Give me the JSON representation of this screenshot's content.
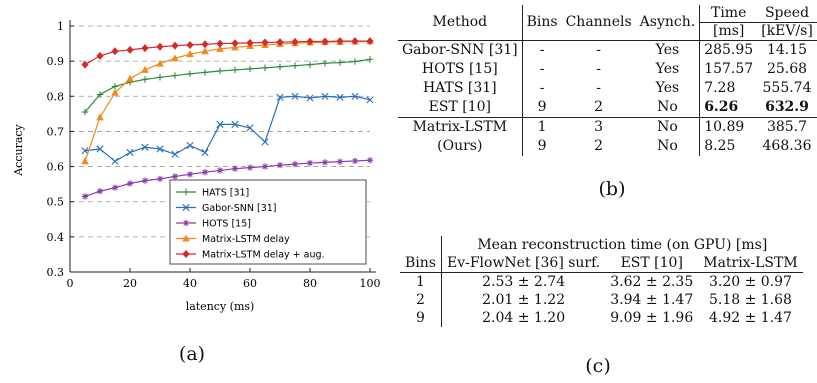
{
  "chart_data": {
    "type": "line",
    "xlabel": "latency (ms)",
    "ylabel": "Accuracy",
    "xlim": [
      0,
      100
    ],
    "ylim": [
      0.3,
      1
    ],
    "x_ticks": [
      "0",
      "20",
      "40",
      "60",
      "80",
      "100"
    ],
    "y_ticks": [
      "0.3",
      "0.4",
      "0.5",
      "0.6",
      "0.7",
      "0.8",
      "0.9",
      "1"
    ],
    "grid": "horizontal dashed",
    "legend_position": "bottom-right",
    "series": [
      {
        "name": "HATS [31]",
        "color": "#2e8b3a",
        "marker": "plus",
        "x": [
          5,
          10,
          15,
          20,
          25,
          30,
          35,
          40,
          45,
          50,
          55,
          60,
          65,
          70,
          75,
          80,
          85,
          90,
          95,
          100
        ],
        "y": [
          0.755,
          0.805,
          0.828,
          0.84,
          0.848,
          0.854,
          0.859,
          0.864,
          0.868,
          0.872,
          0.875,
          0.878,
          0.881,
          0.884,
          0.887,
          0.89,
          0.894,
          0.896,
          0.899,
          0.905
        ]
      },
      {
        "name": "Gabor-SNN [31]",
        "color": "#2a6fb8",
        "marker": "cross",
        "x": [
          5,
          10,
          15,
          20,
          25,
          30,
          35,
          40,
          45,
          50,
          55,
          60,
          65,
          70,
          75,
          80,
          85,
          90,
          95,
          100
        ],
        "y": [
          0.645,
          0.65,
          0.615,
          0.64,
          0.655,
          0.65,
          0.635,
          0.66,
          0.64,
          0.72,
          0.72,
          0.71,
          0.67,
          0.797,
          0.8,
          0.795,
          0.8,
          0.797,
          0.8,
          0.79
        ]
      },
      {
        "name": "HOTS [15]",
        "color": "#8a3aa8",
        "marker": "star",
        "x": [
          5,
          10,
          15,
          20,
          25,
          30,
          35,
          40,
          45,
          50,
          55,
          60,
          65,
          70,
          75,
          80,
          85,
          90,
          95,
          100
        ],
        "y": [
          0.515,
          0.53,
          0.54,
          0.552,
          0.56,
          0.565,
          0.572,
          0.578,
          0.584,
          0.589,
          0.594,
          0.597,
          0.6,
          0.604,
          0.607,
          0.61,
          0.612,
          0.614,
          0.616,
          0.618
        ]
      },
      {
        "name": "Matrix-LSTM delay",
        "color": "#f08a1c",
        "marker": "triangle",
        "x": [
          5,
          10,
          15,
          20,
          25,
          30,
          35,
          40,
          45,
          50,
          55,
          60,
          65,
          70,
          75,
          80,
          85,
          90,
          95,
          100
        ],
        "y": [
          0.615,
          0.74,
          0.81,
          0.85,
          0.875,
          0.893,
          0.908,
          0.92,
          0.928,
          0.935,
          0.939,
          0.943,
          0.946,
          0.949,
          0.951,
          0.953,
          0.954,
          0.955,
          0.956,
          0.957
        ]
      },
      {
        "name": "Matrix-LSTM delay + aug.",
        "color": "#d42a2a",
        "marker": "diamond",
        "x": [
          5,
          10,
          15,
          20,
          25,
          30,
          35,
          40,
          45,
          50,
          55,
          60,
          65,
          70,
          75,
          80,
          85,
          90,
          95,
          100
        ],
        "y": [
          0.89,
          0.915,
          0.928,
          0.932,
          0.937,
          0.941,
          0.944,
          0.946,
          0.948,
          0.95,
          0.951,
          0.952,
          0.953,
          0.954,
          0.955,
          0.956,
          0.956,
          0.957,
          0.957,
          0.957
        ]
      }
    ]
  },
  "captions": {
    "a": "(a)",
    "b": "(b)",
    "c": "(c)"
  },
  "table_b": {
    "headers": {
      "method": "Method",
      "bins": "Bins",
      "channels": "Channels",
      "async": "Asynch.",
      "time": "Time",
      "time_unit": "[ms]",
      "speed": "Speed",
      "speed_unit": "[kEV/s]"
    },
    "rows": [
      {
        "method": "Gabor-SNN [31]",
        "bins": "-",
        "channels": "-",
        "async": "Yes",
        "time": "285.95",
        "speed": "14.15"
      },
      {
        "method": "HOTS [15]",
        "bins": "-",
        "channels": "-",
        "async": "Yes",
        "time": "157.57",
        "speed": "25.68"
      },
      {
        "method": "HATS [31]",
        "bins": "-",
        "channels": "-",
        "async": "Yes",
        "time": "7.28",
        "speed": "555.74"
      },
      {
        "method": "EST [10]",
        "bins": "9",
        "channels": "2",
        "async": "No",
        "time": "6.26",
        "speed": "632.9"
      },
      {
        "method": "Matrix-LSTM",
        "bins": "1",
        "channels": "3",
        "async": "No",
        "time": "10.89",
        "speed": "385.7"
      },
      {
        "method": "(Ours)",
        "bins": "9",
        "channels": "2",
        "async": "No",
        "time": "8.25",
        "speed": "468.36"
      }
    ]
  },
  "table_c": {
    "title": "Mean reconstruction time (on GPU) [ms]",
    "headers": {
      "bins": "Bins",
      "evflownet": "Ev-FlowNet [36] surf.",
      "est": "EST [10]",
      "mlstm": "Matrix-LSTM"
    },
    "rows": [
      {
        "bins": "1",
        "evflownet": "2.53 ± 2.74",
        "est": "3.62 ± 2.35",
        "mlstm": "3.20 ± 0.97"
      },
      {
        "bins": "2",
        "evflownet": "2.01 ± 1.22",
        "est": "3.94 ± 1.47",
        "mlstm": "5.18 ± 1.68"
      },
      {
        "bins": "9",
        "evflownet": "2.04 ± 1.20",
        "est": "9.09 ± 1.96",
        "mlstm": "4.92 ± 1.47"
      }
    ]
  }
}
